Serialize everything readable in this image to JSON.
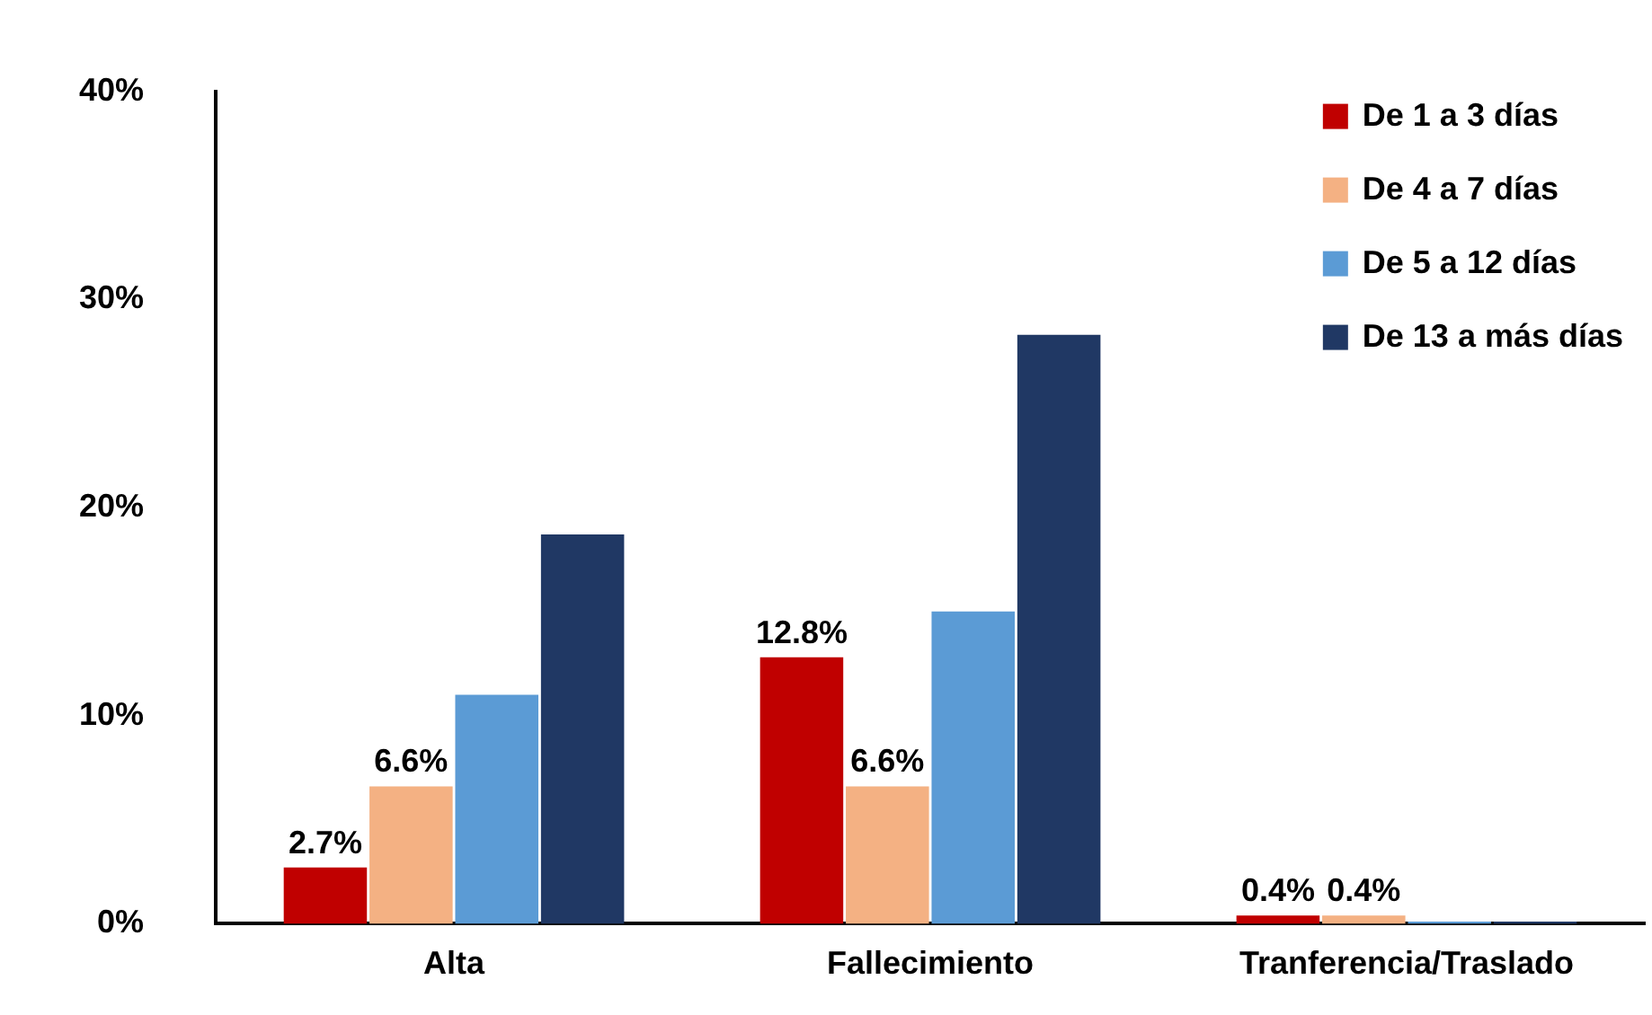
{
  "chart_data": {
    "type": "bar",
    "categories": [
      "Alta",
      "Fallecimiento",
      "Tranferencia/Traslado"
    ],
    "series": [
      {
        "name": "De 1 a 3 días",
        "color": "#c00000",
        "values": [
          2.7,
          12.8,
          0.4
        ],
        "value_labels": [
          "2.7%",
          "12.8%",
          "0.4%"
        ]
      },
      {
        "name": "De 4 a 7 días",
        "color": "#f4b183",
        "values": [
          6.6,
          6.6,
          0.4
        ],
        "value_labels": [
          "6.6%",
          "6.6%",
          "0.4%"
        ]
      },
      {
        "name": "De 5 a 12 días",
        "color": "#5b9bd5",
        "values": [
          11.0,
          15.0,
          0.1
        ],
        "value_labels": [
          null,
          null,
          null
        ]
      },
      {
        "name": "De 13 a más días",
        "color": "#203864",
        "values": [
          18.7,
          28.3,
          0.1
        ],
        "value_labels": [
          null,
          null,
          null
        ]
      }
    ],
    "ylim": [
      0,
      40
    ],
    "yticks": [
      {
        "value": 0,
        "label": "0%"
      },
      {
        "value": 10,
        "label": "10%"
      },
      {
        "value": 20,
        "label": "20%"
      },
      {
        "value": 30,
        "label": "30%"
      },
      {
        "value": 40,
        "label": "40%"
      }
    ],
    "grid": false,
    "legend": "top right"
  }
}
